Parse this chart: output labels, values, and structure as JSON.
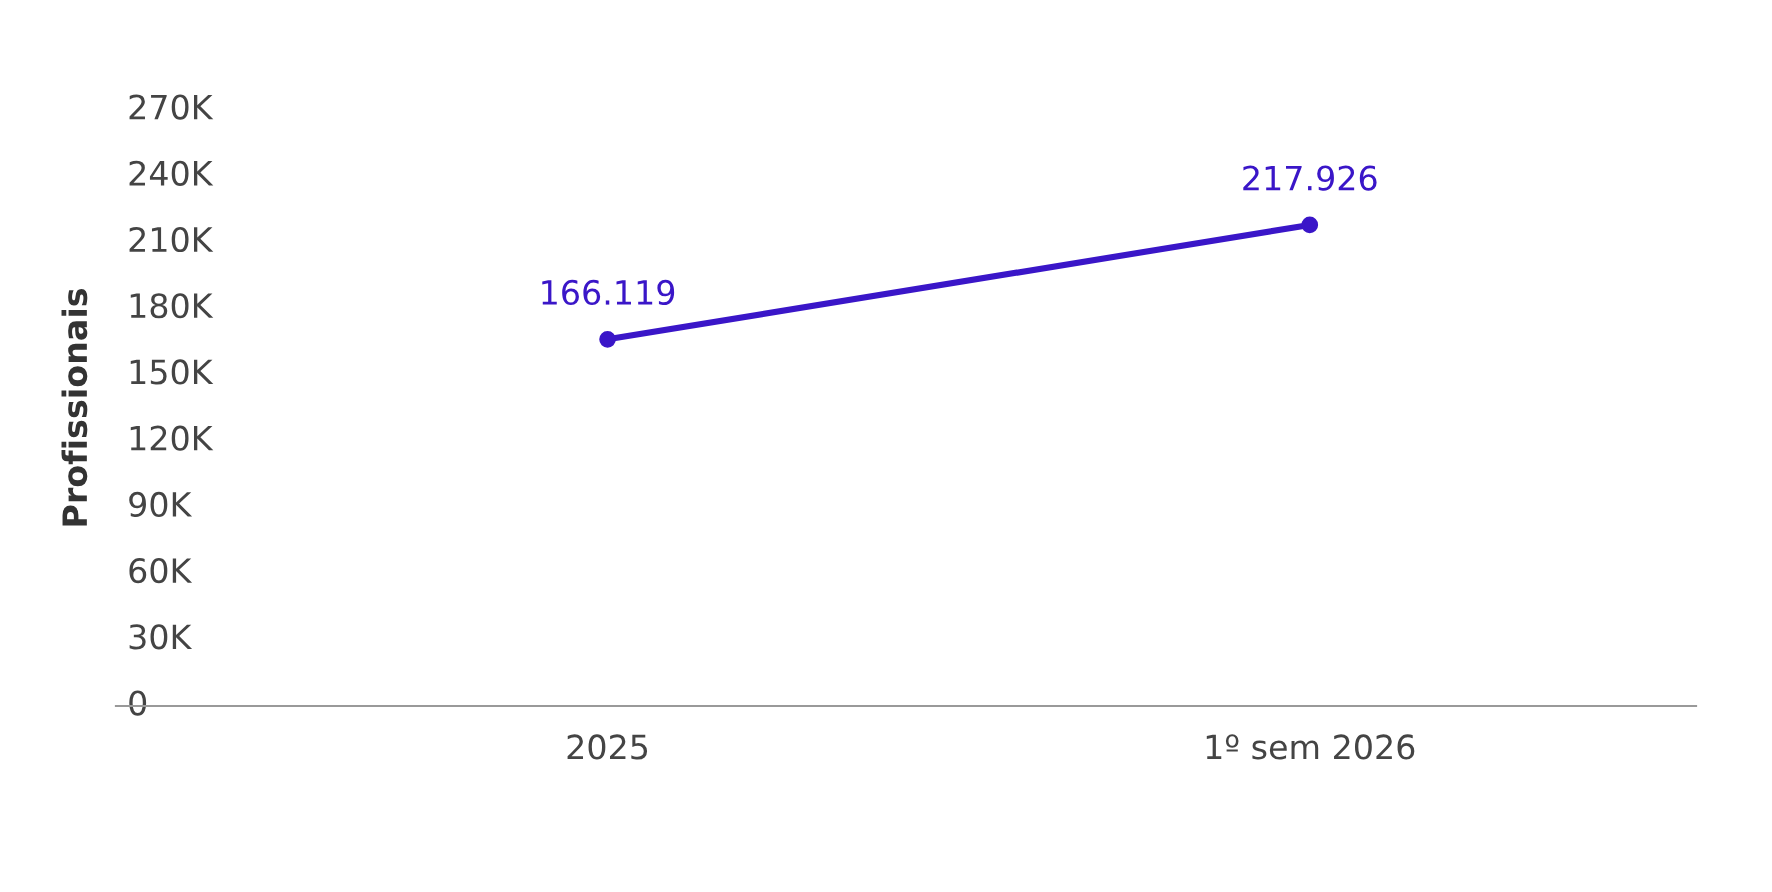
{
  "chart_data": {
    "type": "line",
    "ylabel": "Profissionais",
    "categories": [
      "2025",
      "1º sem 2026"
    ],
    "series": [
      {
        "color": "#3a16c8",
        "values": [
          166119,
          217926
        ],
        "value_labels": [
          "166.119",
          "217.926"
        ]
      }
    ],
    "ylim": [
      0,
      270000
    ],
    "yticks": [
      0,
      {
        "value": 30000,
        "label": "30K"
      },
      {
        "value": 60000,
        "label": "60K"
      },
      {
        "value": 90000,
        "label": "90K"
      },
      {
        "value": 120000,
        "label": "120K"
      },
      {
        "value": 150000,
        "label": "150K"
      },
      {
        "value": 180000,
        "label": "180K"
      },
      {
        "value": 210000,
        "label": "210K"
      },
      {
        "value": 240000,
        "label": "240K"
      },
      {
        "value": 270000,
        "label": "270K"
      }
    ],
    "grid": false,
    "legend": false,
    "marker": "circle",
    "line_style": "solid"
  }
}
